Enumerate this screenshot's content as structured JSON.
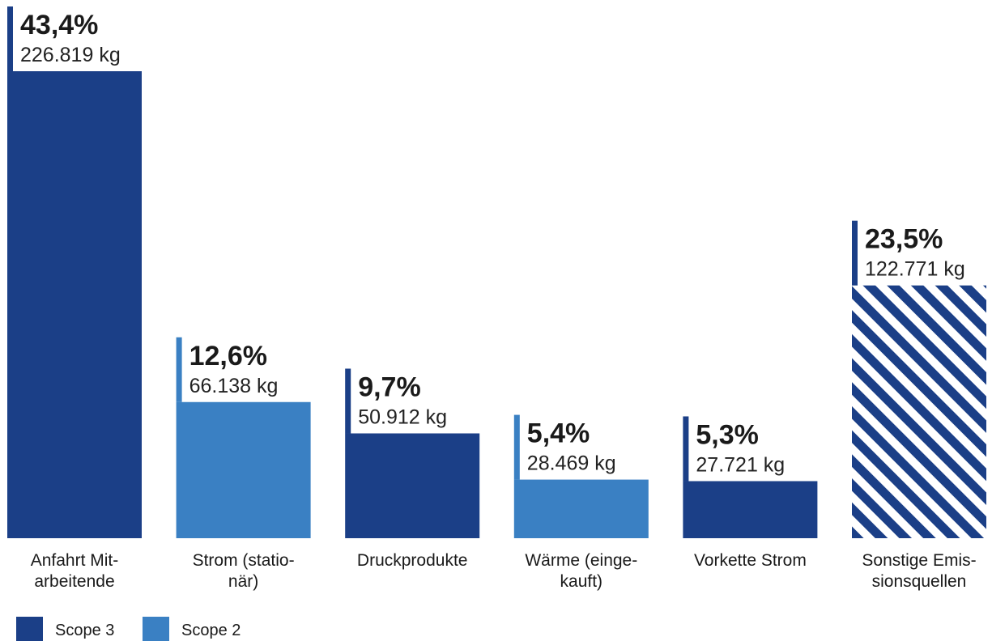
{
  "chart_data": {
    "type": "bar",
    "unit": "kg",
    "colors": {
      "scope_3": "#1b3f87",
      "scope_2": "#3a80c3",
      "background": "#ffffff",
      "text": "#1a1a1a"
    },
    "categories": [
      {
        "label_lines": [
          "Anfahrt Mit-",
          "arbeitende"
        ],
        "percent_label": "43,4%",
        "value_label": "226.819 kg",
        "value": 226819,
        "percent": 43.4,
        "scope": "Scope 3",
        "pattern": "solid"
      },
      {
        "label_lines": [
          "Strom (statio-",
          "när)"
        ],
        "percent_label": "12,6%",
        "value_label": "66.138 kg",
        "value": 66138,
        "percent": 12.6,
        "scope": "Scope 2",
        "pattern": "solid"
      },
      {
        "label_lines": [
          "Druckprodukte"
        ],
        "percent_label": "9,7%",
        "value_label": "50.912 kg",
        "value": 50912,
        "percent": 9.7,
        "scope": "Scope 3",
        "pattern": "solid"
      },
      {
        "label_lines": [
          "Wärme (einge-",
          "kauft)"
        ],
        "percent_label": "5,4%",
        "value_label": "28.469 kg",
        "value": 28469,
        "percent": 5.4,
        "scope": "Scope 2",
        "pattern": "solid"
      },
      {
        "label_lines": [
          "Vorkette Strom"
        ],
        "percent_label": "5,3%",
        "value_label": "27.721 kg",
        "value": 27721,
        "percent": 5.3,
        "scope": "Scope 3",
        "pattern": "solid"
      },
      {
        "label_lines": [
          "Sonstige Emis-",
          "sionsquellen"
        ],
        "percent_label": "23,5%",
        "value_label": "122.771 kg",
        "value": 122771,
        "percent": 23.5,
        "scope": "Scope 3",
        "pattern": "diagonal-stripes"
      }
    ],
    "legend": [
      {
        "label": "Scope 3",
        "color": "#1b3f87"
      },
      {
        "label": "Scope 2",
        "color": "#3a80c3"
      }
    ],
    "legend_position": "bottom-left",
    "grid": false
  }
}
